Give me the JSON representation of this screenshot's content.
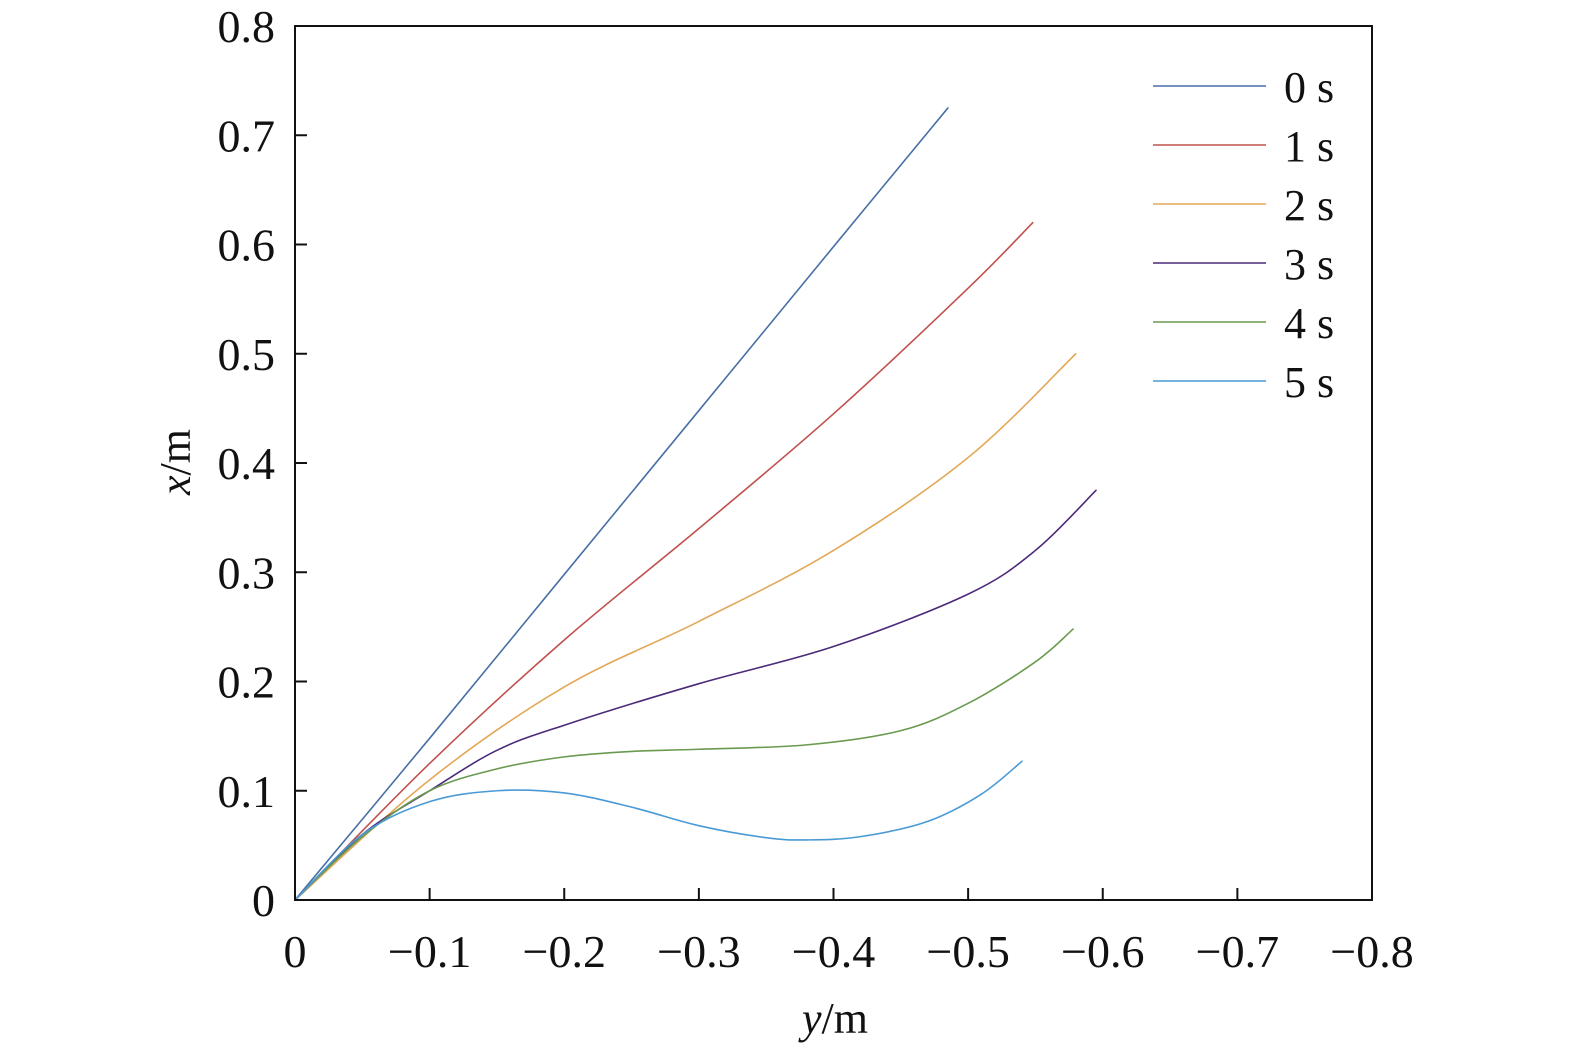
{
  "chart_data": {
    "type": "line",
    "title": "",
    "xlabel": {
      "var": "y",
      "unit": "/m"
    },
    "ylabel": {
      "var": "x",
      "unit": "/m"
    },
    "xlim": [
      0,
      -0.8
    ],
    "ylim": [
      0,
      0.8
    ],
    "xticks": [
      0,
      -0.1,
      -0.2,
      -0.3,
      -0.4,
      -0.5,
      -0.6,
      -0.7,
      -0.8
    ],
    "xtick_labels": [
      "0",
      "−0.1",
      "−0.2",
      "−0.3",
      "−0.4",
      "−0.5",
      "−0.6",
      "−0.7",
      "−0.8"
    ],
    "yticks": [
      0,
      0.1,
      0.2,
      0.3,
      0.4,
      0.5,
      0.6,
      0.7,
      0.8
    ],
    "ytick_labels": [
      "0",
      "0.1",
      "0.2",
      "0.3",
      "0.4",
      "0.5",
      "0.6",
      "0.7",
      "0.8"
    ],
    "grid": false,
    "legend_position": "top-right",
    "series": [
      {
        "name": "0 s",
        "color": "#4a6fa5",
        "x": [
          0,
          -0.1,
          -0.2,
          -0.3,
          -0.4,
          -0.485
        ],
        "y": [
          0,
          0.148,
          0.298,
          0.448,
          0.598,
          0.725
        ]
      },
      {
        "name": "1 s",
        "color": "#c0504d",
        "x": [
          0,
          -0.1,
          -0.2,
          -0.3,
          -0.4,
          -0.5,
          -0.548
        ],
        "y": [
          0,
          0.125,
          0.238,
          0.34,
          0.445,
          0.56,
          0.62
        ]
      },
      {
        "name": "2 s",
        "color": "#e3a857",
        "x": [
          0,
          -0.1,
          -0.2,
          -0.3,
          -0.4,
          -0.5,
          -0.58
        ],
        "y": [
          0,
          0.11,
          0.195,
          0.255,
          0.32,
          0.405,
          0.5
        ]
      },
      {
        "name": "3 s",
        "color": "#4b2a7a",
        "x": [
          0,
          -0.05,
          -0.1,
          -0.15,
          -0.2,
          -0.3,
          -0.4,
          -0.5,
          -0.55,
          -0.595
        ],
        "y": [
          0,
          0.06,
          0.1,
          0.137,
          0.16,
          0.198,
          0.232,
          0.28,
          0.32,
          0.375
        ]
      },
      {
        "name": "4 s",
        "color": "#6a9a4f",
        "x": [
          0,
          -0.05,
          -0.1,
          -0.15,
          -0.2,
          -0.25,
          -0.3,
          -0.38,
          -0.45,
          -0.5,
          -0.55,
          -0.578
        ],
        "y": [
          0,
          0.058,
          0.1,
          0.12,
          0.131,
          0.136,
          0.138,
          0.142,
          0.155,
          0.18,
          0.218,
          0.248
        ]
      },
      {
        "name": "5 s",
        "color": "#4a9ad6",
        "x": [
          0,
          -0.05,
          -0.1,
          -0.15,
          -0.2,
          -0.25,
          -0.3,
          -0.35,
          -0.38,
          -0.42,
          -0.47,
          -0.51,
          -0.54
        ],
        "y": [
          0,
          0.06,
          0.09,
          0.1,
          0.098,
          0.085,
          0.068,
          0.057,
          0.055,
          0.058,
          0.072,
          0.097,
          0.127
        ]
      }
    ]
  }
}
